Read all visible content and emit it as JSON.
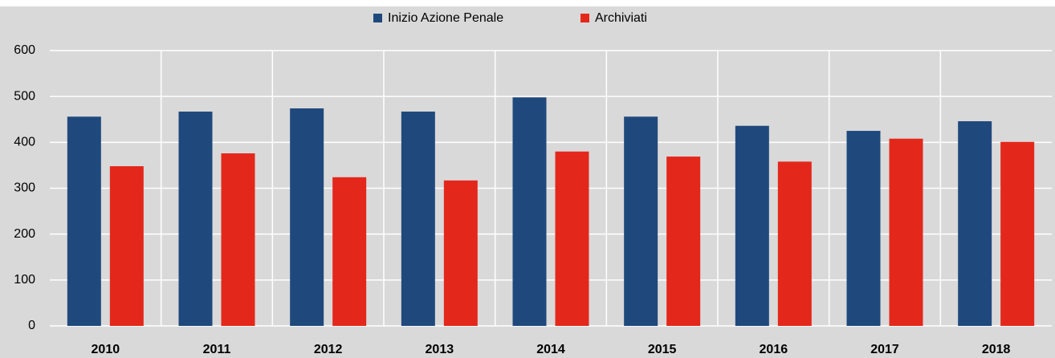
{
  "chart_data": {
    "type": "bar",
    "categories": [
      "2010",
      "2011",
      "2012",
      "2013",
      "2014",
      "2015",
      "2016",
      "2017",
      "2018"
    ],
    "series": [
      {
        "name": "Inizio Azione Penale",
        "color": "#1f497d",
        "values": [
          456,
          467,
          474,
          467,
          498,
          456,
          436,
          425,
          446
        ]
      },
      {
        "name": "Archiviati",
        "color": "#e3281b",
        "values": [
          348,
          376,
          324,
          317,
          380,
          369,
          358,
          408,
          401
        ]
      }
    ],
    "ylim": [
      0,
      600
    ],
    "yticks": [
      0,
      100,
      200,
      300,
      400,
      500,
      600
    ],
    "grid": true
  }
}
